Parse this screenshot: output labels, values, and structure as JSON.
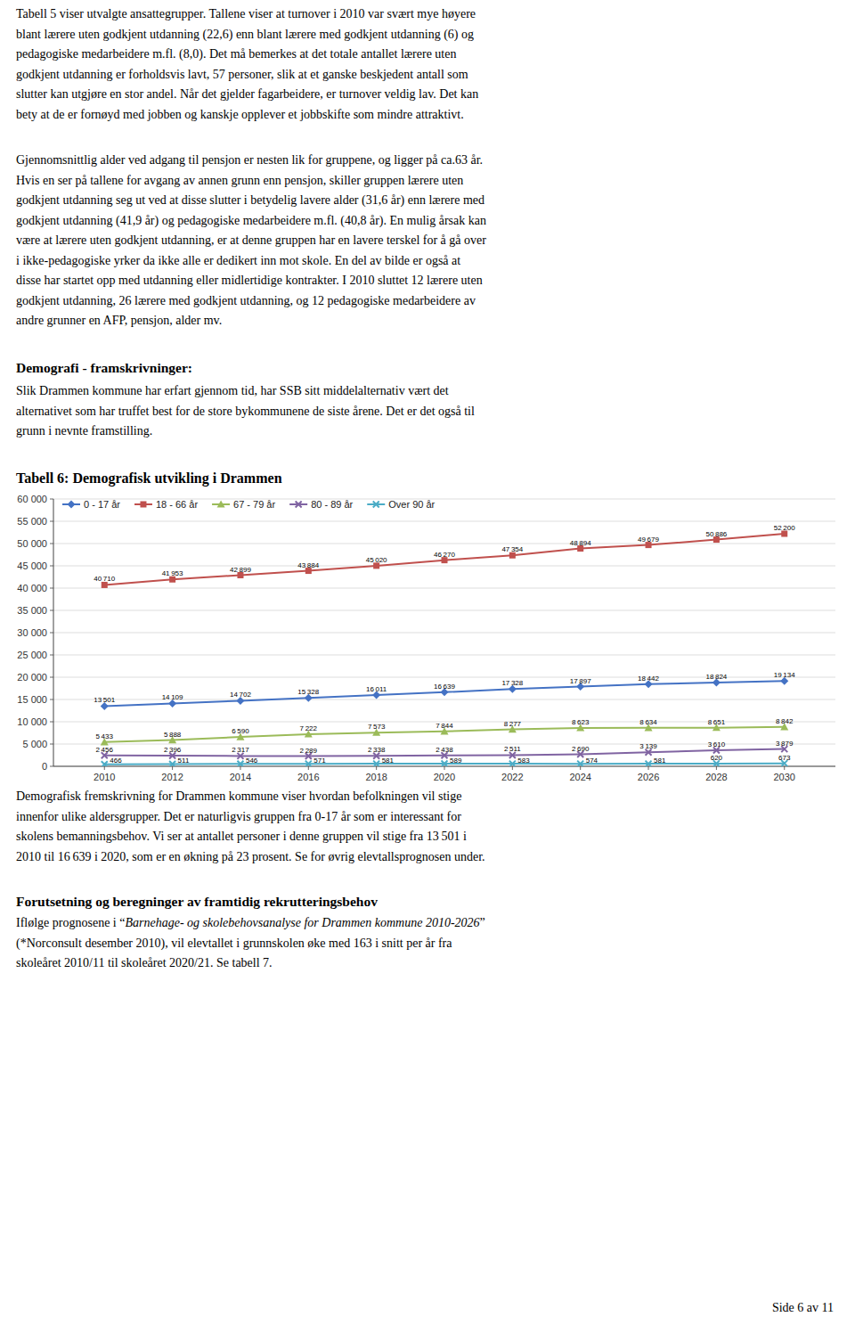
{
  "para1_lines": [
    "Tabell 5 viser utvalgte ansattegrupper. Tallene viser at turnover i 2010 var svært mye høyere",
    "blant lærere uten godkjent utdanning (22,6) enn blant lærere med godkjent utdanning (6) og",
    "pedagogiske medarbeidere m.fl. (8,0). Det må bemerkes at det totale antallet lærere uten",
    "godkjent utdanning er forholdsvis lavt, 57 personer, slik at et ganske beskjedent antall som",
    "slutter kan utgjøre en stor andel. Når det gjelder fagarbeidere, er turnover veldig lav. Det kan",
    "bety at de er fornøyd med jobben og kanskje opplever et jobbskifte som mindre attraktivt."
  ],
  "para2_lines": [
    "Gjennomsnittlig alder ved adgang til pensjon er nesten lik for gruppene, og ligger på ca.63 år.",
    "Hvis en ser på tallene for avgang av annen grunn enn pensjon, skiller gruppen lærere uten",
    "godkjent utdanning seg ut ved at disse slutter i betydelig lavere alder (31,6 år) enn lærere med",
    "godkjent utdanning (41,9 år) og pedagogiske medarbeidere m.fl. (40,8 år). En mulig årsak kan",
    "være at lærere uten godkjent utdanning, er at denne gruppen har en lavere terskel for å gå over",
    "i ikke-pedagogiske yrker da ikke alle er dedikert inn mot skole. En del av bilde er også at",
    "disse har startet opp med utdanning eller midlertidige kontrakter. I 2010 sluttet 12 lærere uten",
    "godkjent utdanning, 26 lærere med godkjent utdanning, og 12 pedagogiske medarbeidere av",
    "andre grunner en AFP, pensjon, alder mv."
  ],
  "demografi_heading": "Demografi - framskrivninger:",
  "demografi_lines": [
    "Slik Drammen kommune har erfart gjennom tid, har SSB sitt middelalternativ vært det",
    "alternativet som har truffet best for de store bykommunene de siste årene. Det er det også til",
    "grunn i nevnte framstilling."
  ],
  "chart_data": {
    "type": "line",
    "title": "Tabell 6: Demografisk utvikling i Drammen",
    "x": [
      2010,
      2012,
      2014,
      2016,
      2018,
      2020,
      2022,
      2024,
      2026,
      2028,
      2030
    ],
    "xlim": [
      2008.5,
      2031.5
    ],
    "xticks": [
      2010,
      2012,
      2014,
      2016,
      2018,
      2020,
      2022,
      2024,
      2026,
      2028,
      2030
    ],
    "ylim": [
      0,
      60000
    ],
    "yticks": [
      0,
      {
        "value": 5000,
        "label": "5 000"
      },
      {
        "value": 10000,
        "label": "10 000"
      },
      {
        "value": 15000,
        "label": "15 000"
      },
      {
        "value": 20000,
        "label": "20 000"
      },
      {
        "value": 25000,
        "label": "25 000"
      },
      {
        "value": 30000,
        "label": "30 000"
      },
      {
        "value": 35000,
        "label": "35 000"
      },
      {
        "value": 40000,
        "label": "40 000"
      },
      {
        "value": 45000,
        "label": "45 000"
      },
      {
        "value": 50000,
        "label": "50 000"
      },
      {
        "value": 55000,
        "label": "55 000"
      },
      {
        "value": 60000,
        "label": "60 000"
      }
    ],
    "grid": true,
    "legend": "upper left",
    "data_labels": true,
    "series": [
      {
        "name": "0 - 17 år",
        "color": "#4472C4",
        "marker": "diamond",
        "values": [
          13501,
          14109,
          14702,
          15328,
          16011,
          16639,
          17328,
          17897,
          18442,
          18824,
          19134
        ],
        "value_labels": [
          "13 501",
          "14 109",
          "14 702",
          "15 328",
          "16 011",
          "16 639",
          "17 328",
          "17 897",
          "18 442",
          "18 824",
          "19 134"
        ]
      },
      {
        "name": "18 - 66 år",
        "color": "#C0504D",
        "marker": "square",
        "values": [
          40710,
          41953,
          42899,
          43884,
          45020,
          46270,
          47354,
          48894,
          49679,
          50886,
          52200
        ],
        "value_labels": [
          "40 710",
          "41 953",
          "42 899",
          "43 884",
          "45 020",
          "46 270",
          "47 354",
          "48 894",
          "49 679",
          "50 886",
          "52 200"
        ]
      },
      {
        "name": "67 - 79 år",
        "color": "#9BBB59",
        "marker": "triangle",
        "values": [
          5433,
          5888,
          6590,
          7222,
          7573,
          7844,
          8277,
          8623,
          8634,
          8651,
          8842
        ],
        "value_labels": [
          "5 433",
          "5 888",
          "6 590",
          "7 222",
          "7 573",
          "7 844",
          "8 277",
          "8 623",
          "8 634",
          "8 651",
          "8 842"
        ]
      },
      {
        "name": "80 - 89 år",
        "color": "#8064A2",
        "marker": "x",
        "values": [
          2456,
          2396,
          2317,
          2289,
          2338,
          2438,
          2511,
          2690,
          3139,
          3610,
          3879
        ],
        "value_labels": [
          "2 456",
          "2 396",
          "2 317",
          "2 289",
          "2 338",
          "2 438",
          "2 511",
          "2 690",
          "3 139",
          "3 610",
          "3 879"
        ]
      },
      {
        "name": "Over 90 år",
        "color": "#4BACC6",
        "marker": "x",
        "values": [
          466,
          511,
          546,
          571,
          581,
          589,
          583,
          574,
          581,
          620,
          673
        ],
        "value_labels": [
          "466",
          "511",
          "546",
          "571",
          "581",
          "589",
          "583",
          "574",
          "581",
          "620",
          "673"
        ]
      }
    ]
  },
  "below_chart_lines": [
    "Demografisk fremskrivning for Drammen kommune viser hvordan befolkningen vil stige",
    "innenfor ulike aldersgrupper. Det er naturligvis gruppen fra 0-17 år som er interessant for",
    "skolens bemanningsbehov. Vi ser at antallet personer i denne gruppen vil stige fra 13 501 i",
    "2010 til 16 639 i 2020, som er en økning på 23 prosent. Se for øvrig elevtallsprognosen under."
  ],
  "forut_heading": "Forutsetning og beregninger av framtidig rekrutteringsbehov",
  "forut_line1_pre": "Iflølge prognosene i “",
  "forut_line1_italic": "Barnehage- og skolebehovsanalyse for Drammen kommune 2010-2026",
  "forut_line1_post": "”",
  "forut_lines_rest": [
    "(*Norconsult desember 2010), vil elevtallet i grunnskolen øke med 163 i snitt per år fra",
    "skoleåret 2010/11 til skoleåret 2020/21. Se tabell 7."
  ],
  "page_number": "Side 6 av 11"
}
